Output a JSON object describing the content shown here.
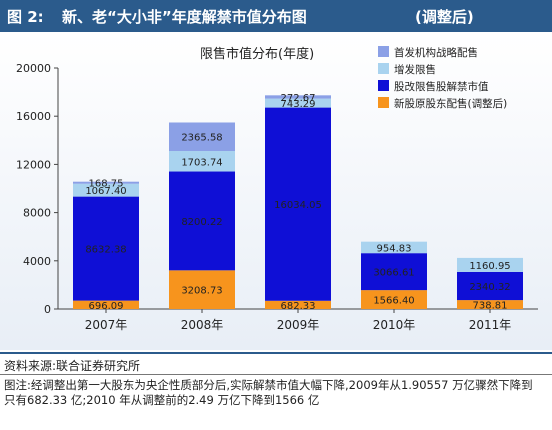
{
  "figure": {
    "number": "图 2:",
    "title": "新、老“大小非”年度解禁市值分布图",
    "adjusted": "(调整后)"
  },
  "source": "资料来源:联合证券研究所",
  "note": "图注:经调整出第一大股东为央企性质部分后,实际解禁市值大幅下降,2009年从1.90557 万亿骤然下降到只有682.33 亿;2010 年从调整前的2.49 万亿下降到1566 亿",
  "colors": {
    "header_bg": "#2b5b8c",
    "new_original": "#f7941d",
    "reform_restricted": "#0f0fd6",
    "increase_restricted": "#a9d3ef",
    "ipo_placement": "#8ba0e6"
  },
  "chart_data": {
    "type": "bar",
    "stacked": true,
    "title": "限售市值分布(年度)",
    "categories": [
      "2007年",
      "2008年",
      "2009年",
      "2010年",
      "2011年"
    ],
    "ylim": [
      0,
      20000
    ],
    "yticks": [
      0,
      4000,
      8000,
      12000,
      16000,
      20000
    ],
    "legend_position": "top-right",
    "series": [
      {
        "name": "新股原股东配售(调整后)",
        "color": "#f7941d",
        "values": [
          696.09,
          3208.73,
          682.33,
          1566.4,
          738.81
        ],
        "labels": [
          "696.09",
          "3208.73",
          "682.33",
          "1566.40",
          "738.81"
        ]
      },
      {
        "name": "股改限售股解禁市值",
        "color": "#0f0fd6",
        "values": [
          8632.38,
          8200.22,
          16034.05,
          3066.61,
          2340.32
        ],
        "labels": [
          "8632.38",
          "8200.22",
          "16034.05",
          "3066.61",
          "2340.32"
        ]
      },
      {
        "name": "增发限售",
        "color": "#a9d3ef",
        "values": [
          1067.4,
          1703.74,
          743.29,
          954.83,
          1160.95
        ],
        "labels": [
          "1067.40",
          "1703.74",
          "743.29",
          "954.83",
          "1160.95"
        ]
      },
      {
        "name": "首发机构战略配售",
        "color": "#8ba0e6",
        "values": [
          168.75,
          2365.58,
          272.67,
          0,
          0
        ],
        "labels": [
          "168.75",
          "2365.58",
          "272.67",
          "",
          ""
        ]
      }
    ]
  }
}
